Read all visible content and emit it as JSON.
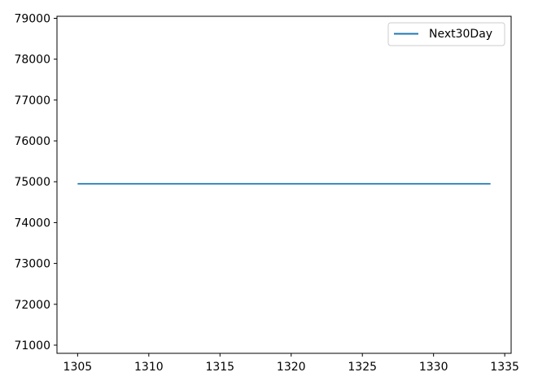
{
  "chart_data": {
    "type": "line",
    "title": "",
    "xlabel": "",
    "ylabel": "",
    "xlim": [
      1303.55,
      1335.45
    ],
    "ylim": [
      70800,
      79050
    ],
    "x_ticks": [
      1305,
      1310,
      1315,
      1320,
      1325,
      1330,
      1335
    ],
    "y_ticks": [
      71000,
      72000,
      73000,
      74000,
      75000,
      76000,
      77000,
      78000,
      79000
    ],
    "grid": false,
    "legend_position": "top-right",
    "series": [
      {
        "name": "Next30Day",
        "color": "#1f77b4",
        "x": [
          1305,
          1306,
          1307,
          1308,
          1309,
          1310,
          1311,
          1312,
          1313,
          1314,
          1315,
          1316,
          1317,
          1318,
          1319,
          1320,
          1321,
          1322,
          1323,
          1324,
          1325,
          1326,
          1327,
          1328,
          1329,
          1330,
          1331,
          1332,
          1333,
          1334
        ],
        "y": [
          74950,
          74950,
          74950,
          74950,
          74950,
          74950,
          74950,
          74950,
          74950,
          74950,
          74950,
          74950,
          74950,
          74950,
          74950,
          74950,
          74950,
          74950,
          74950,
          74950,
          74950,
          74950,
          74950,
          74950,
          74950,
          74950,
          74950,
          74950,
          74950,
          74950
        ]
      }
    ]
  }
}
